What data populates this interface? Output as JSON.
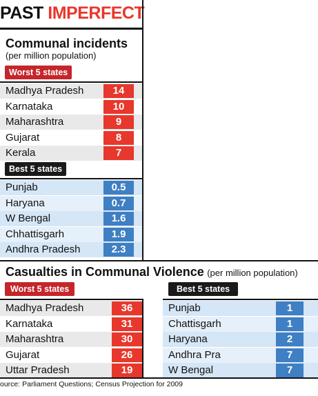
{
  "title": {
    "part1": "PAST ",
    "part2": "IMPERFECT"
  },
  "colors": {
    "accent_red": "#e8372c",
    "tag_red": "#c5262b",
    "value_blue": "#3f7fc3",
    "row_red_alt": "#e9e9e9",
    "row_blue": "#d5e6f6",
    "row_blue_alt": "#e6f0fa"
  },
  "chart_data": [
    {
      "type": "table",
      "title": "Communal incidents",
      "subtitle": "(per million population)",
      "groups": [
        {
          "label": "Worst 5 states",
          "categories": [
            "Madhya Pradesh",
            "Karnataka",
            "Maharashtra",
            "Gujarat",
            "Kerala"
          ],
          "values": [
            "14",
            "10",
            "9",
            "8",
            "7"
          ]
        },
        {
          "label": "Best 5 states",
          "categories": [
            "Punjab",
            "Haryana",
            "W Bengal",
            "Chhattisgarh",
            "Andhra Pradesh"
          ],
          "values": [
            "0.5",
            "0.7",
            "1.6",
            "1.9",
            "2.3"
          ]
        }
      ]
    },
    {
      "type": "table",
      "title": "Casualties in Communal Violence",
      "subtitle": "(per million population)",
      "groups": [
        {
          "label": "Worst 5 states",
          "categories": [
            "Madhya Pradesh",
            "Karnataka",
            "Maharashtra",
            "Gujarat",
            "Uttar Pradesh"
          ],
          "values": [
            "36",
            "31",
            "30",
            "26",
            "19"
          ]
        },
        {
          "label": "Best 5 states",
          "categories": [
            "Punjab",
            "Chattisgarh",
            "Haryana",
            "Andhra Pra",
            "W Bengal"
          ],
          "values": [
            "1",
            "1",
            "2",
            "7",
            "7"
          ]
        }
      ]
    }
  ],
  "source": "ource: Parliament Questions; Census Projection for 2009"
}
